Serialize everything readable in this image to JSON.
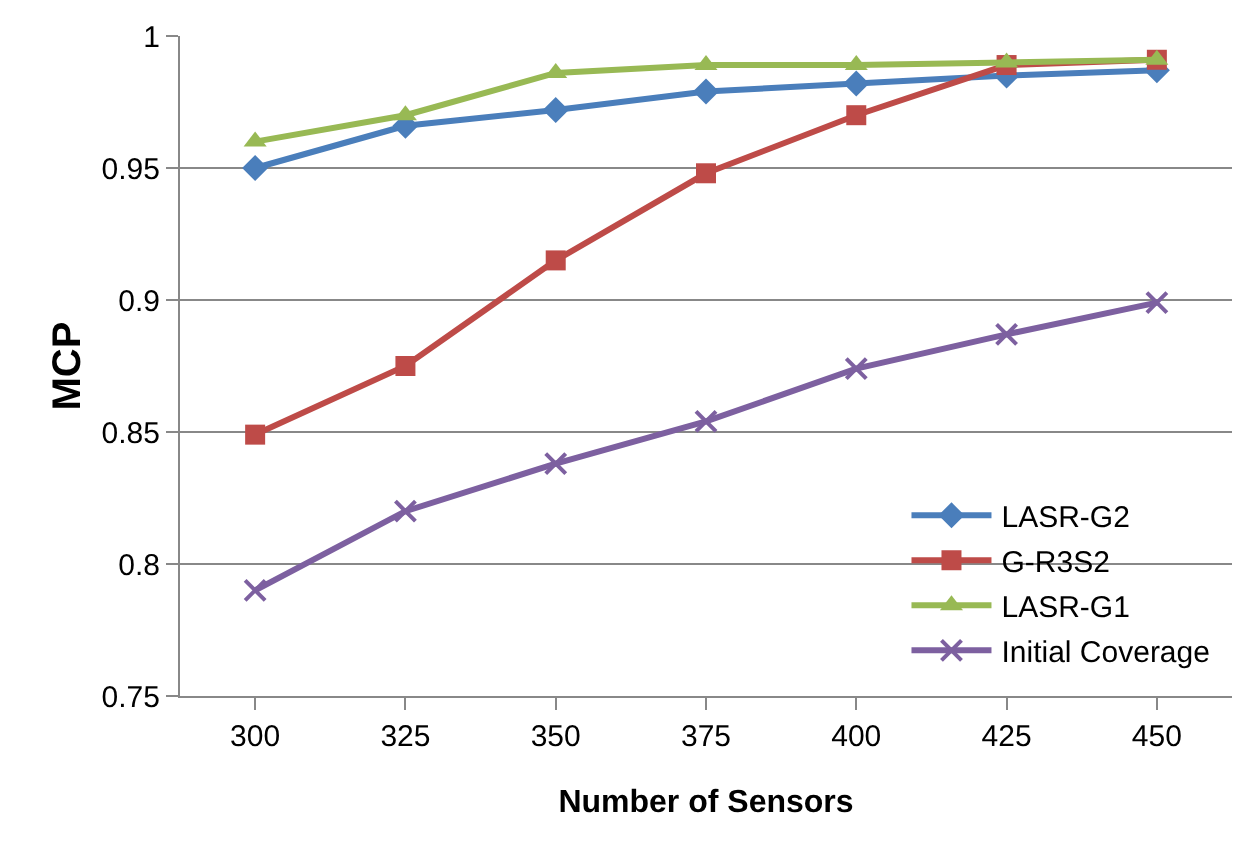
{
  "chart_data": {
    "type": "line",
    "xlabel": "Number of Sensors",
    "ylabel": "MCP",
    "categories": [
      "300",
      "325",
      "350",
      "375",
      "400",
      "425",
      "450"
    ],
    "series": [
      {
        "name": "LASR-G2",
        "color": "#4a7ebb",
        "marker": "diamond",
        "values": [
          0.95,
          0.966,
          0.972,
          0.979,
          0.982,
          0.985,
          0.987
        ]
      },
      {
        "name": "G-R3S2",
        "color": "#be4b48",
        "marker": "square",
        "values": [
          0.849,
          0.875,
          0.915,
          0.948,
          0.97,
          0.989,
          0.991
        ]
      },
      {
        "name": "LASR-G1",
        "color": "#98b954",
        "marker": "triangle",
        "values": [
          0.96,
          0.97,
          0.986,
          0.989,
          0.989,
          0.99,
          0.991
        ]
      },
      {
        "name": "Initial Coverage",
        "color": "#7d60a0",
        "marker": "cross",
        "values": [
          0.79,
          0.82,
          0.838,
          0.854,
          0.874,
          0.887,
          0.899
        ]
      }
    ],
    "ylim": [
      0.75,
      1
    ],
    "yticks": [
      0.75,
      0.8,
      0.85,
      0.9,
      0.95,
      {
        "value": 1,
        "label": "1"
      }
    ],
    "grid": "y",
    "legend": "bottom right",
    "line_style": "solid"
  }
}
